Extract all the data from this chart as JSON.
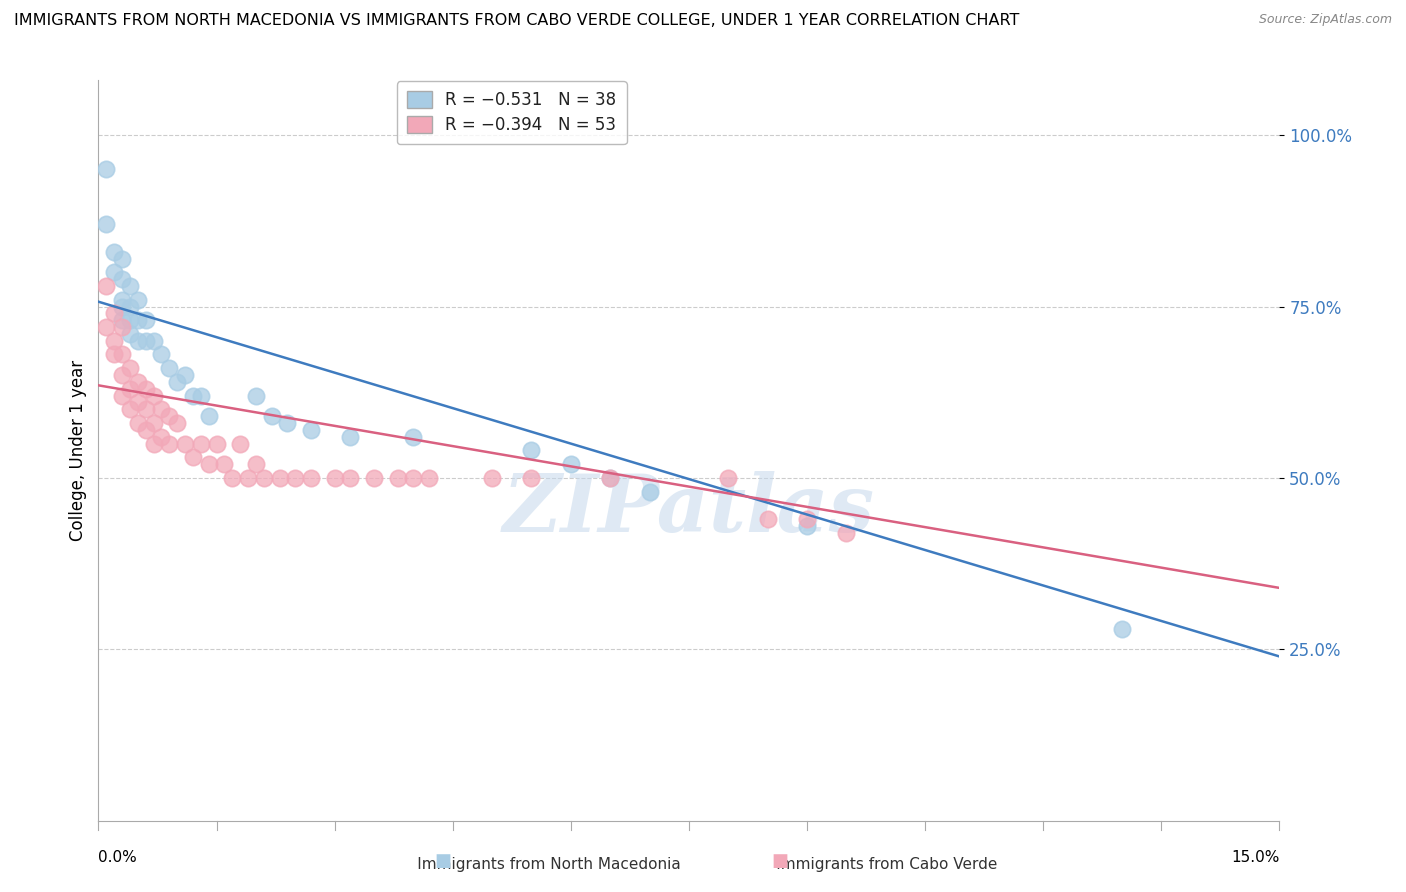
{
  "title": "IMMIGRANTS FROM NORTH MACEDONIA VS IMMIGRANTS FROM CABO VERDE COLLEGE, UNDER 1 YEAR CORRELATION CHART",
  "source": "Source: ZipAtlas.com",
  "ylabel": "College, Under 1 year",
  "xmin": 0.0,
  "xmax": 0.15,
  "ymin": 0.0,
  "ymax": 1.08,
  "yticks": [
    0.25,
    0.5,
    0.75,
    1.0
  ],
  "ytick_labels": [
    "25.0%",
    "50.0%",
    "75.0%",
    "100.0%"
  ],
  "legend_r1": "R = −0.531",
  "legend_n1": "N = 38",
  "legend_r2": "R = −0.394",
  "legend_n2": "N = 53",
  "blue_color": "#a8cce4",
  "pink_color": "#f2a8b8",
  "blue_line_color": "#3e7bbf",
  "pink_line_color": "#d96080",
  "watermark": "ZIPatlas",
  "series1_x": [
    0.001,
    0.001,
    0.002,
    0.002,
    0.003,
    0.003,
    0.003,
    0.003,
    0.003,
    0.004,
    0.004,
    0.004,
    0.004,
    0.005,
    0.005,
    0.005,
    0.006,
    0.006,
    0.007,
    0.008,
    0.009,
    0.01,
    0.011,
    0.012,
    0.013,
    0.014,
    0.02,
    0.022,
    0.024,
    0.027,
    0.032,
    0.04,
    0.055,
    0.06,
    0.065,
    0.07,
    0.09,
    0.13
  ],
  "series1_y": [
    0.95,
    0.87,
    0.83,
    0.8,
    0.82,
    0.79,
    0.76,
    0.75,
    0.73,
    0.78,
    0.75,
    0.73,
    0.71,
    0.76,
    0.73,
    0.7,
    0.73,
    0.7,
    0.7,
    0.68,
    0.66,
    0.64,
    0.65,
    0.62,
    0.62,
    0.59,
    0.62,
    0.59,
    0.58,
    0.57,
    0.56,
    0.56,
    0.54,
    0.52,
    0.5,
    0.48,
    0.43,
    0.28
  ],
  "series2_x": [
    0.001,
    0.001,
    0.002,
    0.002,
    0.002,
    0.003,
    0.003,
    0.003,
    0.003,
    0.004,
    0.004,
    0.004,
    0.005,
    0.005,
    0.005,
    0.006,
    0.006,
    0.006,
    0.007,
    0.007,
    0.007,
    0.008,
    0.008,
    0.009,
    0.009,
    0.01,
    0.011,
    0.012,
    0.013,
    0.014,
    0.015,
    0.016,
    0.017,
    0.018,
    0.019,
    0.02,
    0.021,
    0.023,
    0.025,
    0.027,
    0.03,
    0.032,
    0.035,
    0.038,
    0.04,
    0.042,
    0.05,
    0.055,
    0.065,
    0.08,
    0.085,
    0.09,
    0.095
  ],
  "series2_y": [
    0.78,
    0.72,
    0.74,
    0.7,
    0.68,
    0.72,
    0.68,
    0.65,
    0.62,
    0.66,
    0.63,
    0.6,
    0.64,
    0.61,
    0.58,
    0.63,
    0.6,
    0.57,
    0.62,
    0.58,
    0.55,
    0.6,
    0.56,
    0.59,
    0.55,
    0.58,
    0.55,
    0.53,
    0.55,
    0.52,
    0.55,
    0.52,
    0.5,
    0.55,
    0.5,
    0.52,
    0.5,
    0.5,
    0.5,
    0.5,
    0.5,
    0.5,
    0.5,
    0.5,
    0.5,
    0.5,
    0.5,
    0.5,
    0.5,
    0.5,
    0.44,
    0.44,
    0.42
  ],
  "blue_intercept": 0.757,
  "blue_slope": -3.45,
  "pink_intercept": 0.635,
  "pink_slope": -1.97
}
